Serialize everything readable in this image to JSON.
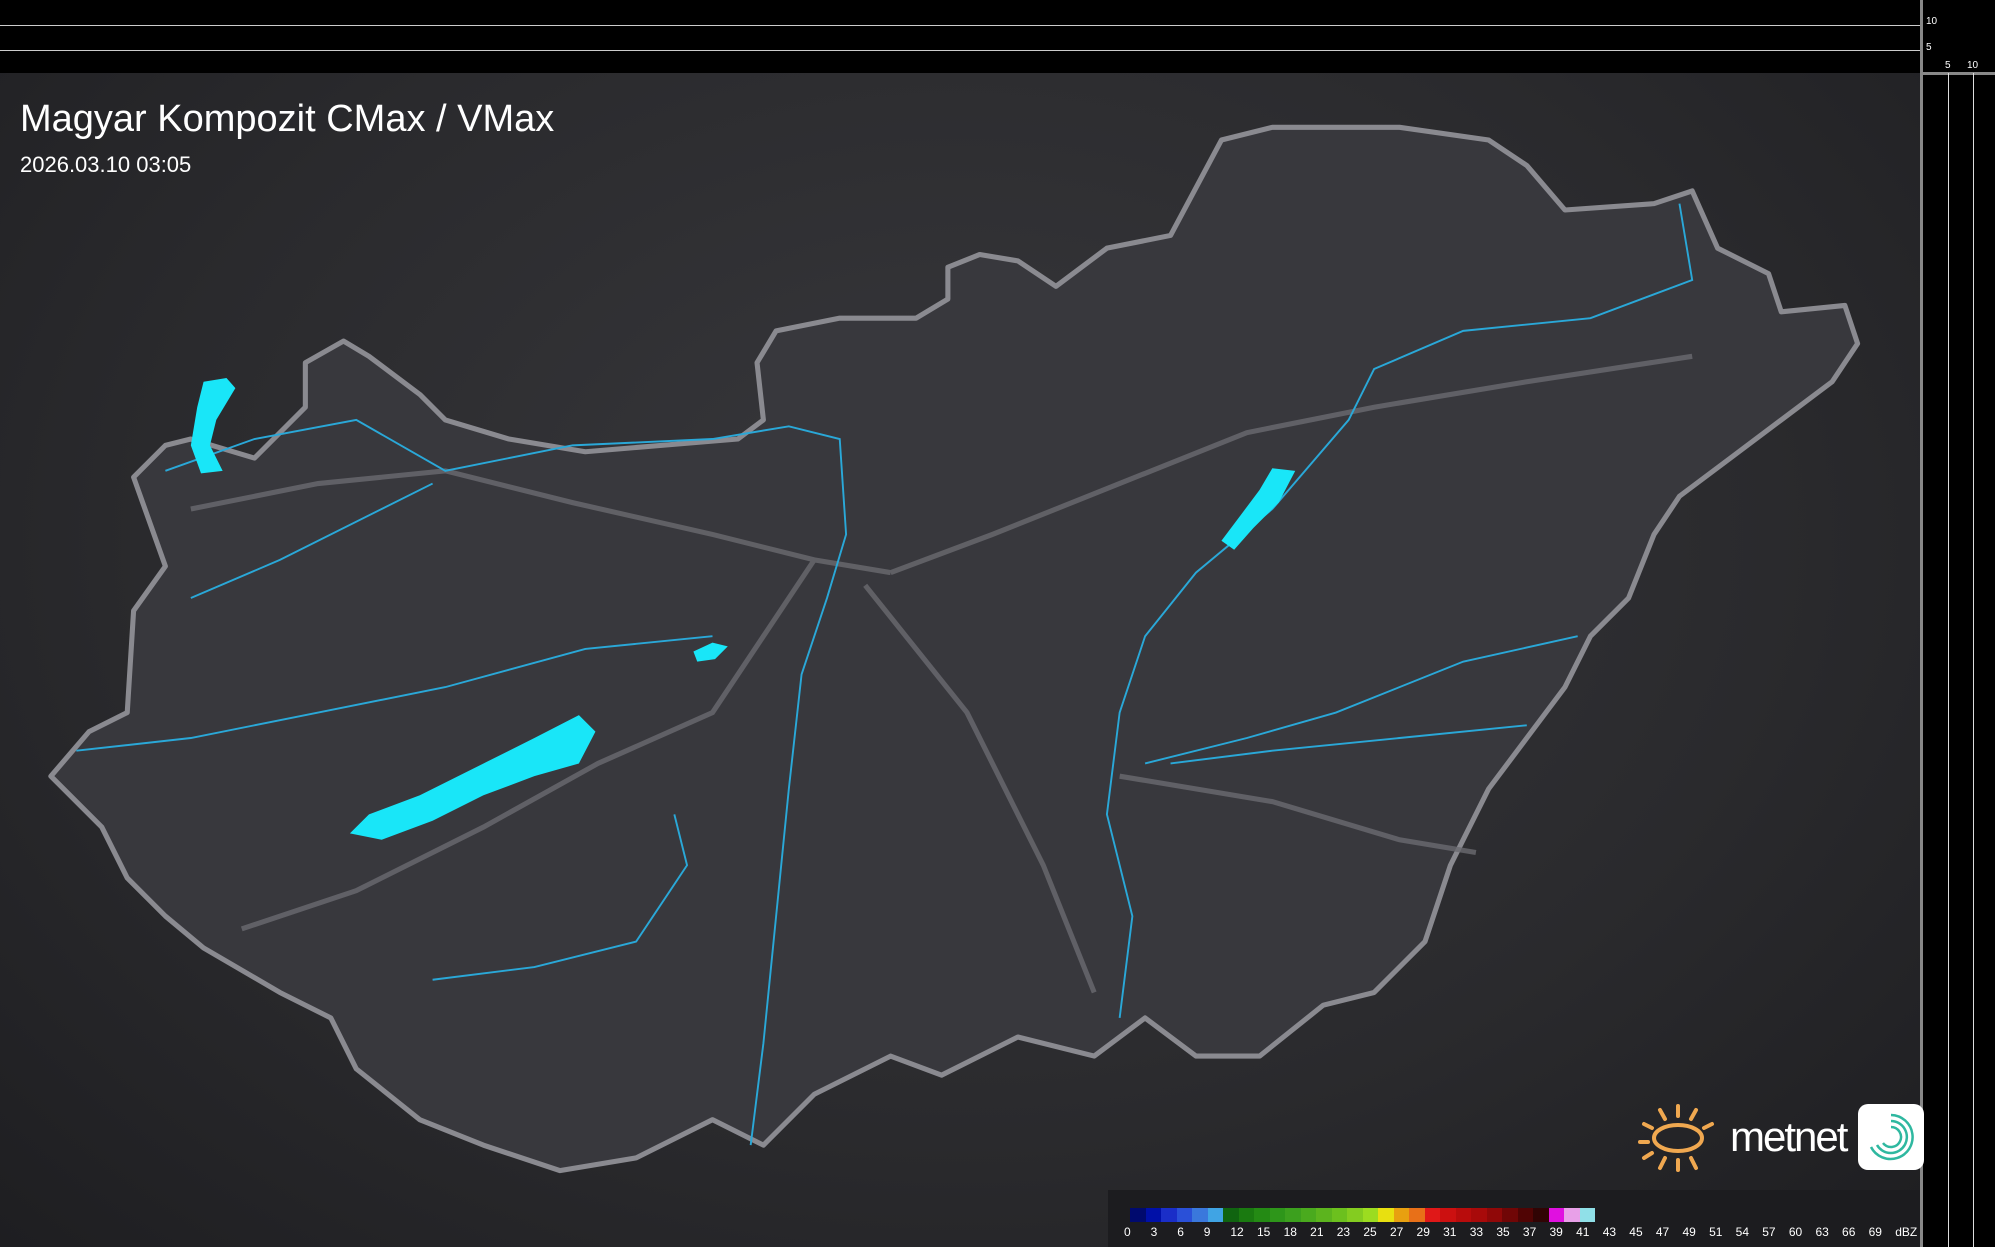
{
  "title": "Magyar Kompozit CMax / VMax",
  "timestamp": "2026.03.10 03:05",
  "scale_ticks": {
    "vertical": [
      "10",
      "5"
    ],
    "horizontal": [
      "5",
      "10"
    ]
  },
  "brand": {
    "name": "metnet"
  },
  "legend": {
    "unit": "dBZ",
    "labels": [
      "0",
      "3",
      "6",
      "9",
      "12",
      "15",
      "18",
      "21",
      "23",
      "25",
      "27",
      "29",
      "31",
      "33",
      "35",
      "37",
      "39",
      "41",
      "43",
      "45",
      "47",
      "49",
      "51",
      "54",
      "57",
      "60",
      "63",
      "66",
      "69"
    ],
    "colors": [
      "#000a6e",
      "#0010a8",
      "#1a2ec8",
      "#2a50d8",
      "#3a78dc",
      "#40a4e4",
      "#106410",
      "#1a7a10",
      "#248a14",
      "#2e961a",
      "#3ca01e",
      "#4aaa1e",
      "#5cb41e",
      "#6cc01e",
      "#84cc20",
      "#9cdc20",
      "#e8e010",
      "#e8a010",
      "#e87018",
      "#e01818",
      "#cc1010",
      "#b80c0c",
      "#a80a0a",
      "#900808",
      "#700606",
      "#500404",
      "#300404",
      "#e010e0",
      "#e8a0e8",
      "#90e0e8"
    ]
  },
  "colors": {
    "lakes": "#19e6f8",
    "rivers": "#2aa8d8",
    "border": "#8a8a90",
    "background": "#2c2c30"
  }
}
